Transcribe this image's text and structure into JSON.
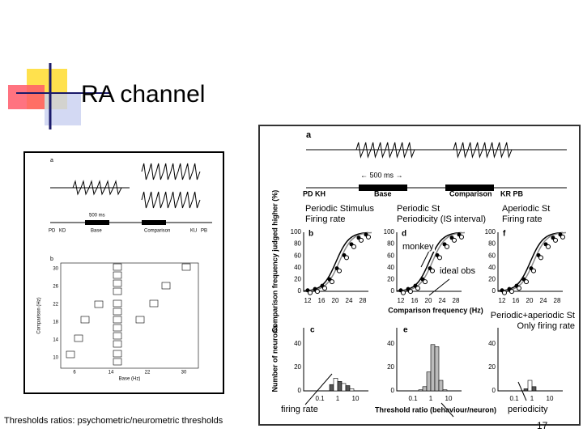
{
  "header": {
    "title": "RA channel"
  },
  "figure_left": {
    "panel_labels": [
      "a",
      "b"
    ],
    "timing_label": "500 ms",
    "phase_labels": [
      "PD",
      "KD",
      "Base",
      "Comparison",
      "KU",
      "PB"
    ],
    "y_axis_label": "Comparison (Hz)",
    "x_axis_label": "Base (Hz)",
    "yticks": [
      "30",
      "26",
      "22",
      "18",
      "14",
      "10"
    ],
    "xticks": [
      "6",
      "14",
      "22",
      "30"
    ]
  },
  "figure_right": {
    "panel_labels": [
      "a",
      "b",
      "d",
      "f",
      "c",
      "e"
    ],
    "timing_label": "← 500 ms →",
    "phase_labels": [
      "PD KH",
      "Base",
      "Comparison",
      "KR PB"
    ],
    "top_y_axis_label": "Comparison frequency judged higher (%)",
    "top_x_axis_label": "Comparison frequency (Hz)",
    "bottom_y_axis_label": "Number of neurons",
    "bottom_x_axis_label": "Threshold ratio (behaviour/neuron)",
    "top_yticks": [
      "100",
      "80",
      "60",
      "40",
      "20",
      "0"
    ],
    "top_xticks": [
      "12",
      "16",
      "20",
      "24",
      "28"
    ],
    "bottom_yticks": [
      "40",
      "20",
      "0"
    ],
    "bottom_xticks": [
      "0.1",
      "1",
      "10"
    ]
  },
  "annotations": [
    {
      "lines": [
        "Periodic Stimulus",
        "Firing rate"
      ]
    },
    {
      "lines": [
        "Periodic St",
        "Periodicity (IS interval)"
      ]
    },
    {
      "lines": [
        "Aperiodic St",
        "Firing rate"
      ]
    },
    {
      "lines": [
        "monkey"
      ]
    },
    {
      "lines": [
        "ideal obs"
      ]
    },
    {
      "lines": [
        "Periodic+aperiodic St",
        "Only firing rate"
      ]
    },
    {
      "lines": [
        "firing rate"
      ]
    },
    {
      "lines": [
        "periodicity"
      ]
    }
  ],
  "footer": {
    "note": "Thresholds ratios: psychometric/neurometric thresholds",
    "page_number": "17"
  }
}
